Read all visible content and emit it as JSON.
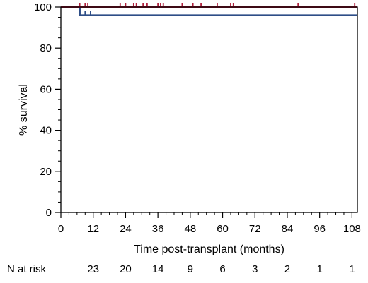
{
  "chart_data": {
    "type": "line",
    "subtype": "kaplan-meier",
    "title": "",
    "xlabel": "Time post-transplant (months)",
    "ylabel": "% survival",
    "xlim": [
      0,
      110
    ],
    "ylim": [
      0,
      100
    ],
    "x_ticks": [
      0,
      12,
      24,
      36,
      48,
      60,
      72,
      84,
      96,
      108
    ],
    "x_minor_step": 3,
    "y_ticks": [
      0,
      20,
      40,
      60,
      80,
      100
    ],
    "y_minor_step": 5,
    "grid": false,
    "series": [
      {
        "color": "#b01f3c",
        "steps": [
          [
            0,
            100
          ],
          [
            110,
            100
          ]
        ],
        "censor_times": [
          7,
          9,
          10,
          22,
          24,
          27,
          28,
          30.5,
          32,
          36,
          37,
          38,
          45,
          49,
          52,
          58,
          63,
          64,
          88,
          109
        ]
      },
      {
        "color": "#2e4e87",
        "steps": [
          [
            0,
            100
          ],
          [
            7,
            100
          ],
          [
            7,
            96
          ],
          [
            110,
            96
          ]
        ],
        "censor_times": [
          9,
          11
        ]
      }
    ],
    "risk_table": {
      "label": "N at risk",
      "times": [
        12,
        24,
        36,
        48,
        60,
        72,
        84,
        96,
        108
      ],
      "counts": [
        "23",
        "20",
        "14",
        "9",
        "6",
        "3",
        "2",
        "1",
        "1"
      ]
    }
  }
}
